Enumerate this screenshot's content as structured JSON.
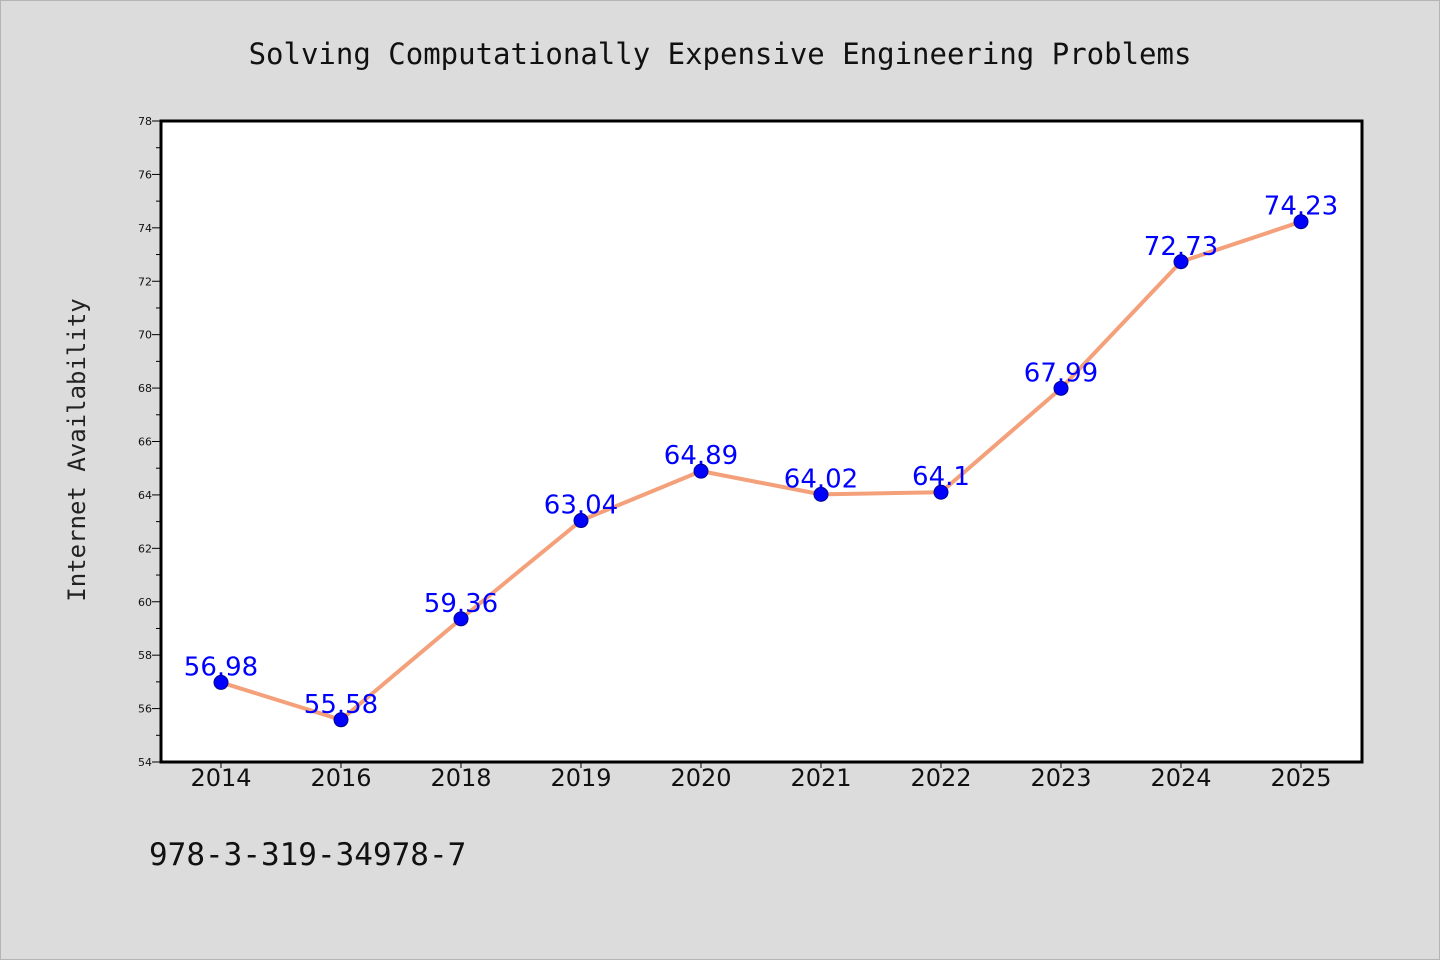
{
  "chart_data": {
    "type": "line",
    "title": "Solving Computationally Expensive Engineering Problems",
    "xlabel": "",
    "ylabel": "Internet Availability",
    "categories": [
      "2014",
      "2016",
      "2018",
      "2019",
      "2020",
      "2021",
      "2022",
      "2023",
      "2024",
      "2025"
    ],
    "values": [
      56.98,
      55.58,
      59.36,
      63.04,
      64.89,
      64.02,
      64.1,
      67.99,
      72.73,
      74.23
    ],
    "data_labels": [
      "56.98",
      "55.58",
      "59.36",
      "63.04",
      "64.89",
      "64.02",
      "64.1",
      "67.99",
      "72.73",
      "74.23"
    ],
    "ylim": [
      54,
      78
    ],
    "yticks": [
      54,
      56,
      58,
      60,
      62,
      64,
      66,
      68,
      70,
      72,
      74,
      76,
      78
    ],
    "ytick_labels": [
      "54",
      "56",
      "58",
      "60",
      "62",
      "64",
      "66",
      "68",
      "70",
      "72",
      "74",
      "76",
      "78"
    ],
    "grid": false,
    "line_color": "#f4a07a",
    "marker_color": "#0000ff",
    "label_color": "#0000ff"
  },
  "footer": {
    "isbn": "978-3-319-34978-7"
  }
}
